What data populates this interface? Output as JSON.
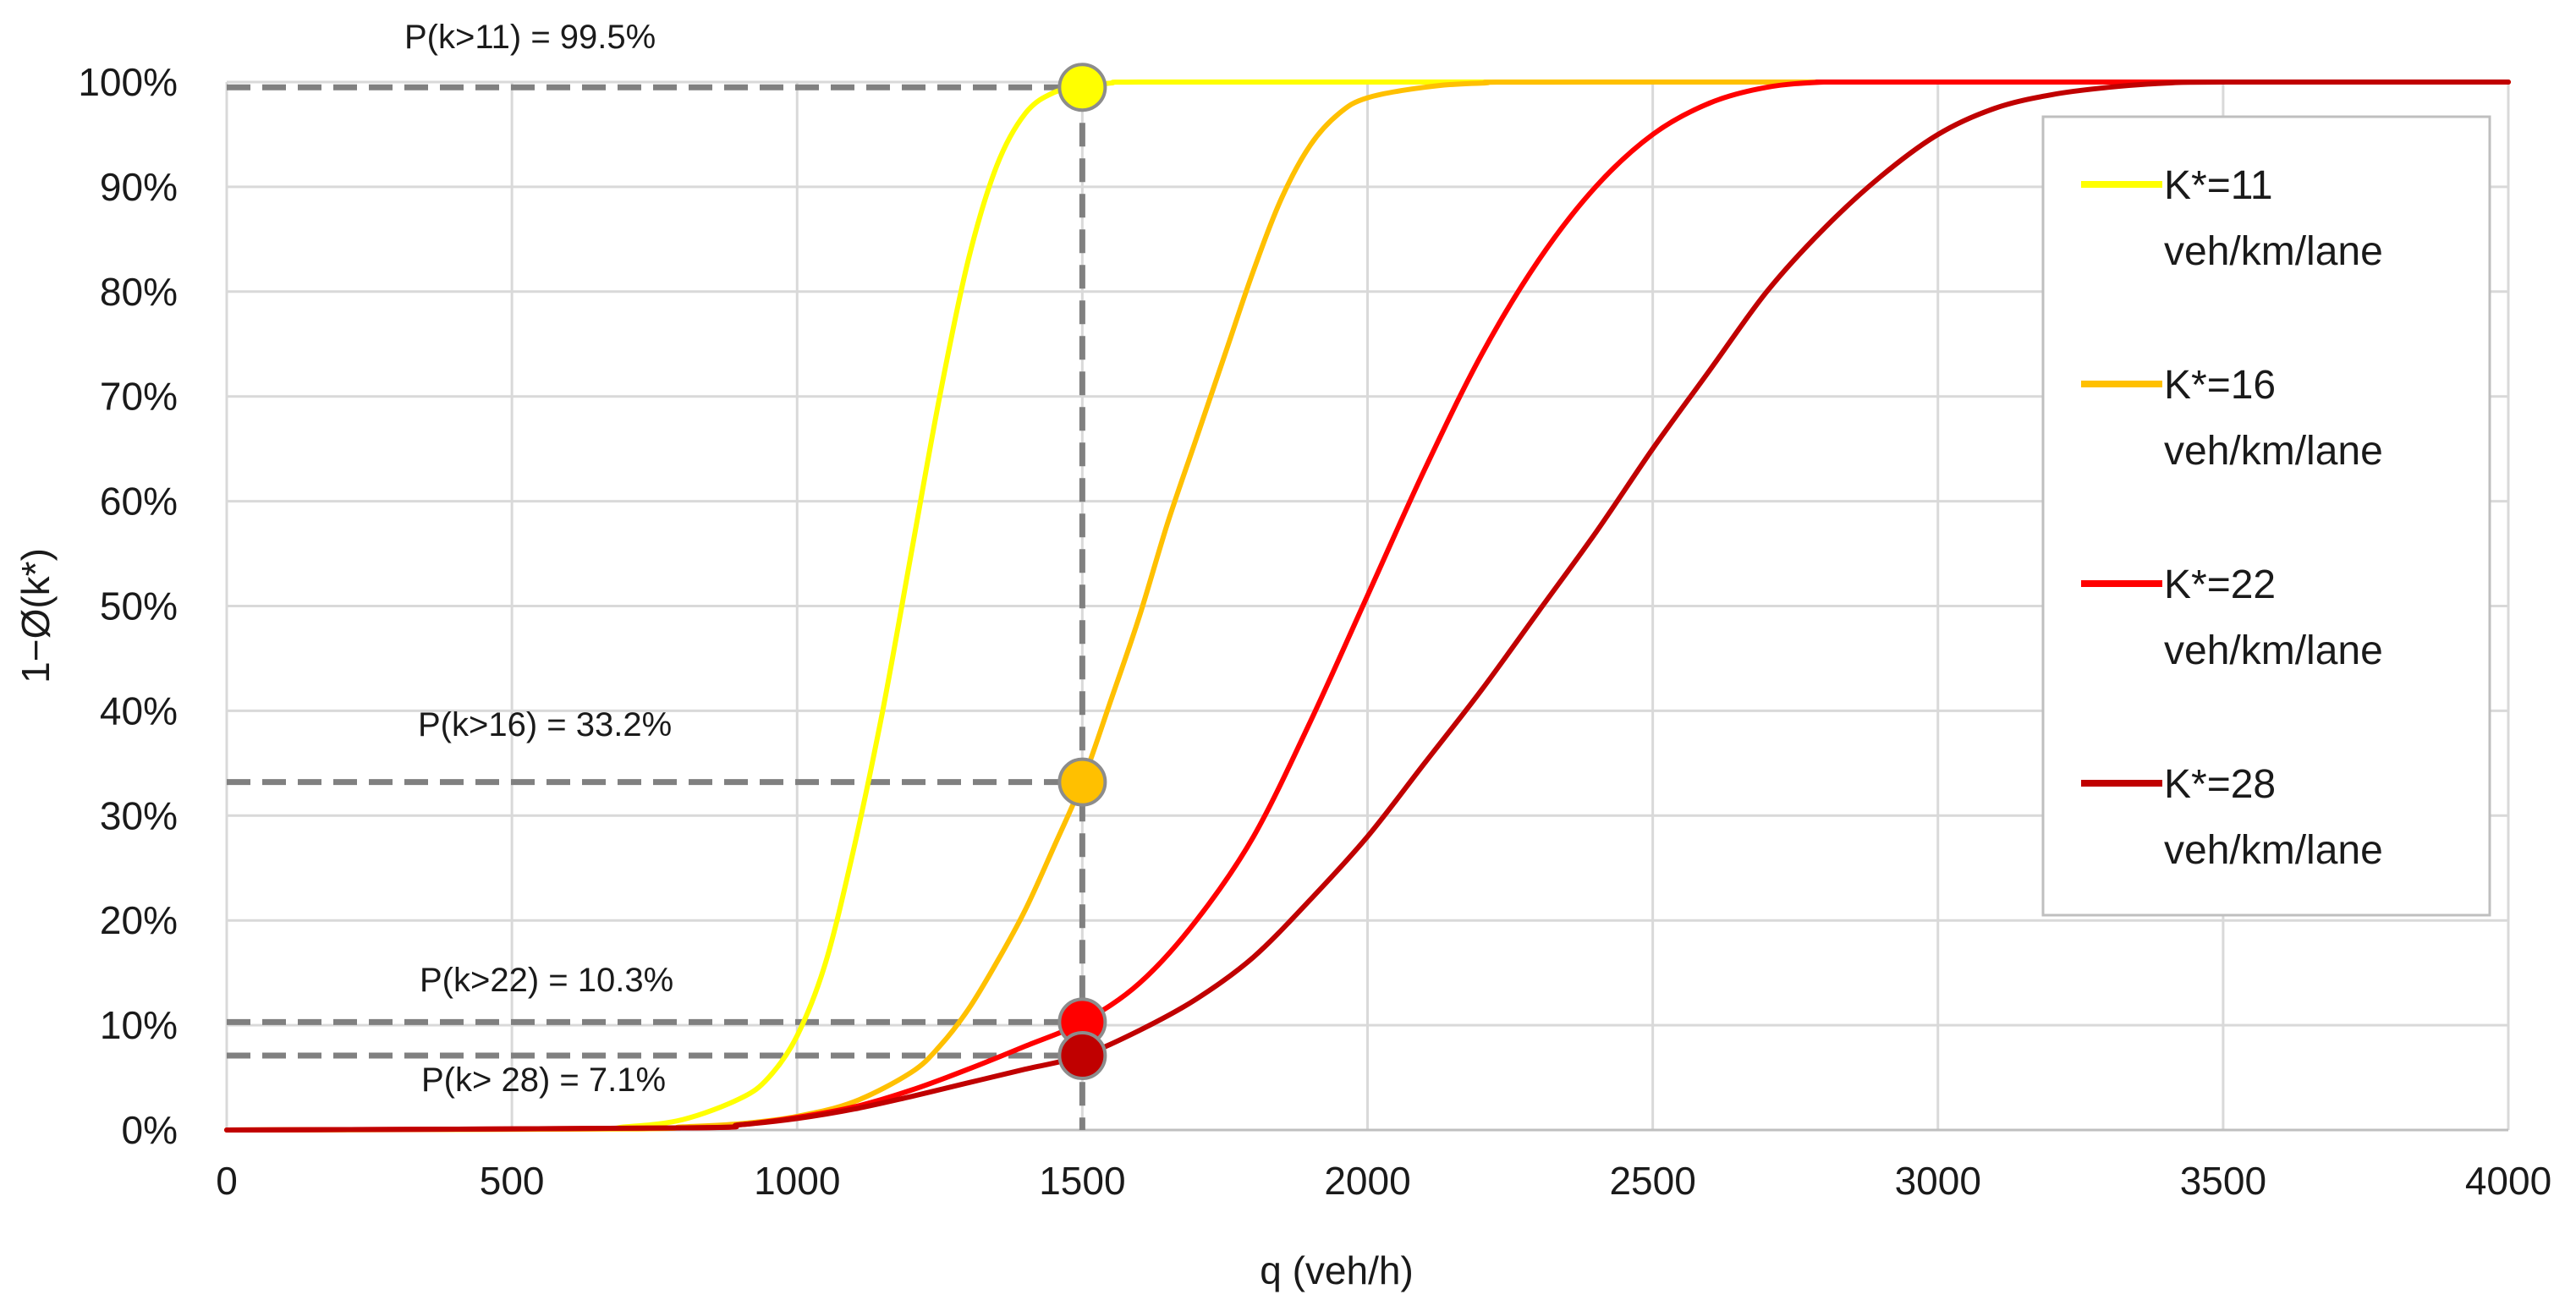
{
  "chart_data": {
    "type": "line",
    "title": "",
    "xlabel": "q (veh/h)",
    "ylabel": "1−Ø(k*)",
    "xlim": [
      0,
      4000
    ],
    "ylim": [
      0,
      100
    ],
    "x_ticks": [
      0,
      500,
      1000,
      1500,
      2000,
      2500,
      3000,
      3500,
      4000
    ],
    "x_tick_labels": [
      "0",
      "500",
      "1000",
      "1500",
      "2000",
      "2500",
      "3000",
      "3500",
      "4000"
    ],
    "y_ticks": [
      0,
      10,
      20,
      30,
      40,
      50,
      60,
      70,
      80,
      90,
      100
    ],
    "y_tick_labels": [
      "0%",
      "10%",
      "20%",
      "30%",
      "40%",
      "50%",
      "60%",
      "70%",
      "80%",
      "90%",
      "100%"
    ],
    "grid": true,
    "legend_position": "right",
    "series": [
      {
        "name": "K*=11 veh/km/lane",
        "legend_lines": [
          "K*=11",
          "veh/km/lane"
        ],
        "color": "#ffff00",
        "x": [
          0,
          600,
          700,
          800,
          900,
          950,
          1000,
          1050,
          1100,
          1150,
          1200,
          1250,
          1300,
          1350,
          1400,
          1450,
          1500,
          1550,
          1600,
          2000,
          4000
        ],
        "y": [
          0,
          0.1,
          0.3,
          1,
          3,
          5,
          9,
          16,
          27,
          40,
          55,
          70,
          83,
          92,
          97,
          99,
          99.5,
          99.9,
          100,
          100,
          100
        ]
      },
      {
        "name": "K*=16 veh/km/lane",
        "legend_lines": [
          "K*=16",
          "veh/km/lane"
        ],
        "color": "#ffc000",
        "x": [
          0,
          700,
          800,
          900,
          1000,
          1100,
          1200,
          1250,
          1300,
          1350,
          1400,
          1450,
          1500,
          1550,
          1600,
          1650,
          1700,
          1750,
          1800,
          1850,
          1900,
          1950,
          2000,
          2100,
          2200,
          2400,
          4000
        ],
        "y": [
          0,
          0.1,
          0.3,
          0.6,
          1.3,
          2.7,
          5.5,
          8,
          11.5,
          16,
          21,
          27,
          33.2,
          41,
          49,
          58,
          66,
          74,
          82,
          89,
          94,
          97,
          98.5,
          99.5,
          99.9,
          100,
          100
        ]
      },
      {
        "name": "K*=22 veh/km/lane",
        "legend_lines": [
          "K*=22",
          "veh/km/lane"
        ],
        "color": "#ff0000",
        "x": [
          0,
          800,
          900,
          1000,
          1100,
          1200,
          1300,
          1400,
          1500,
          1600,
          1700,
          1800,
          1900,
          2000,
          2100,
          2200,
          2300,
          2400,
          2500,
          2600,
          2700,
          2800,
          2900,
          4000
        ],
        "y": [
          0,
          0.2,
          0.5,
          1.2,
          2.2,
          3.8,
          5.8,
          8,
          10.3,
          14,
          20,
          28,
          39,
          51,
          63,
          74,
          83,
          90,
          95,
          98,
          99.5,
          100,
          100,
          100
        ]
      },
      {
        "name": "K*=28 veh/km/lane",
        "legend_lines": [
          "K*=28",
          "veh/km/lane"
        ],
        "color": "#c00000",
        "x": [
          0,
          800,
          900,
          1000,
          1100,
          1200,
          1300,
          1400,
          1500,
          1600,
          1700,
          1800,
          1900,
          2000,
          2100,
          2200,
          2300,
          2400,
          2500,
          2600,
          2700,
          2800,
          2900,
          3000,
          3100,
          3200,
          3300,
          3400,
          3500,
          4000
        ],
        "y": [
          0,
          0.2,
          0.5,
          1.1,
          2,
          3.2,
          4.5,
          5.8,
          7.1,
          9.5,
          12.5,
          16.5,
          22,
          28,
          35,
          42,
          49.5,
          57,
          65,
          72.5,
          80,
          86,
          91,
          95,
          97.5,
          98.8,
          99.5,
          99.9,
          100,
          100
        ]
      }
    ],
    "markers": [
      {
        "x": 1500,
        "y": 99.5,
        "color": "#ffff00"
      },
      {
        "x": 1500,
        "y": 33.2,
        "color": "#ffc000"
      },
      {
        "x": 1500,
        "y": 10.3,
        "color": "#ff0000"
      },
      {
        "x": 1500,
        "y": 7.1,
        "color": "#c00000"
      }
    ],
    "annotations": [
      {
        "text": "P(k>11) = 99.5%",
        "x": 1500,
        "y": 99.5
      },
      {
        "text": "P(k>16) = 33.2%",
        "x": 1500,
        "y": 33.2
      },
      {
        "text": "P(k>22) = 10.3%",
        "x": 1500,
        "y": 10.3
      },
      {
        "text": "P(k> 28) = 7.1%",
        "x": 1500,
        "y": 7.1
      }
    ]
  }
}
